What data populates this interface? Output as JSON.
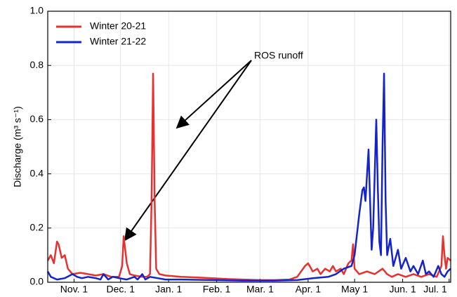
{
  "chart_data": {
    "type": "line",
    "y_label": "Discharge (m³ s⁻¹)",
    "annotation": "ROS runoff",
    "legend": "upper left",
    "grid": true,
    "xlim": [
      14,
      274
    ],
    "xticks": [
      {
        "value": 31,
        "label": "Nov. 1"
      },
      {
        "value": 61,
        "label": "Dec. 1"
      },
      {
        "value": 92,
        "label": "Jan. 1"
      },
      {
        "value": 123,
        "label": "Feb. 1"
      },
      {
        "value": 151,
        "label": "Mar. 1"
      },
      {
        "value": 182,
        "label": "Apr. 1"
      },
      {
        "value": 212,
        "label": "May 1"
      },
      {
        "value": 243,
        "label": "Jun. 1"
      },
      {
        "value": 273,
        "label": "Jul. 1"
      }
    ],
    "ylim": [
      0,
      1
    ],
    "yticks": [
      {
        "value": 0,
        "label": "0.0"
      },
      0.2,
      0.4,
      0.6,
      0.8,
      {
        "value": 1,
        "label": "1.0"
      }
    ],
    "series": [
      {
        "name": "Winter 20-21",
        "color": "#e8312f",
        "x": [
          14,
          16,
          18,
          20,
          21,
          23,
          25,
          27,
          30,
          35,
          40,
          45,
          50,
          55,
          60,
          62,
          63,
          65,
          67,
          70,
          75,
          78,
          80,
          81,
          82,
          83,
          84,
          86,
          90,
          100,
          110,
          120,
          130,
          140,
          150,
          160,
          170,
          175,
          180,
          182,
          185,
          188,
          190,
          193,
          196,
          198,
          200,
          203,
          205,
          208,
          210,
          211,
          212,
          215,
          220,
          225,
          230,
          233,
          236,
          240,
          245,
          250,
          255,
          260,
          265,
          268,
          269,
          270,
          271,
          272,
          274
        ],
        "values": [
          0.08,
          0.1,
          0.07,
          0.15,
          0.14,
          0.09,
          0.1,
          0.05,
          0.03,
          0.035,
          0.03,
          0.025,
          0.03,
          0.02,
          0.02,
          0.06,
          0.17,
          0.07,
          0.03,
          0.025,
          0.02,
          0.02,
          0.03,
          0.3,
          0.77,
          0.3,
          0.05,
          0.03,
          0.025,
          0.02,
          0.018,
          0.015,
          0.012,
          0.01,
          0.008,
          0.008,
          0.01,
          0.02,
          0.06,
          0.07,
          0.04,
          0.05,
          0.03,
          0.05,
          0.04,
          0.06,
          0.04,
          0.05,
          0.03,
          0.07,
          0.08,
          0.14,
          0.05,
          0.03,
          0.04,
          0.03,
          0.05,
          0.03,
          0.02,
          0.03,
          0.02,
          0.03,
          0.02,
          0.03,
          0.02,
          0.06,
          0.17,
          0.1,
          0.05,
          0.09,
          0.08
        ]
      },
      {
        "name": "Winter 21-22",
        "color": "#1424c8",
        "x": [
          14,
          16,
          20,
          25,
          30,
          33,
          36,
          40,
          45,
          48,
          50,
          53,
          56,
          60,
          65,
          70,
          72,
          75,
          77,
          80,
          85,
          90,
          100,
          120,
          140,
          160,
          175,
          185,
          195,
          200,
          205,
          210,
          212,
          215,
          217,
          218,
          219,
          221,
          222,
          223,
          224,
          225,
          226,
          227,
          228,
          229,
          230,
          231,
          232,
          233,
          235,
          237,
          240,
          242,
          245,
          248,
          250,
          253,
          256,
          258,
          260,
          263,
          266,
          268,
          270,
          272,
          274
        ],
        "values": [
          0.04,
          0.02,
          0.01,
          0.015,
          0.03,
          0.02,
          0.015,
          0.02,
          0.015,
          0.01,
          0.03,
          0.01,
          0.02,
          0.015,
          0.01,
          0.02,
          0.01,
          0.03,
          0.01,
          0.02,
          0.015,
          0.01,
          0.01,
          0.008,
          0.006,
          0.006,
          0.008,
          0.015,
          0.02,
          0.03,
          0.05,
          0.06,
          0.1,
          0.25,
          0.34,
          0.35,
          0.3,
          0.49,
          0.3,
          0.12,
          0.2,
          0.4,
          0.6,
          0.35,
          0.15,
          0.1,
          0.5,
          0.77,
          0.3,
          0.1,
          0.16,
          0.06,
          0.12,
          0.05,
          0.09,
          0.04,
          0.06,
          0.03,
          0.08,
          0.03,
          0.04,
          0.02,
          0.06,
          0.03,
          0.02,
          0.04,
          0.05
        ]
      }
    ]
  }
}
